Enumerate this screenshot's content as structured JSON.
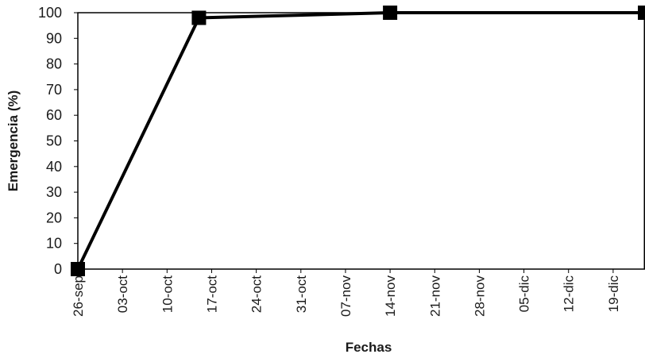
{
  "chart_data": {
    "type": "line",
    "xlabel": "Fechas",
    "ylabel": "Emergencia (%)",
    "ylim": [
      0,
      100
    ],
    "yticks": [
      "0",
      "10",
      "20",
      "30",
      "40",
      "50",
      "60",
      "70",
      "80",
      "90",
      "100"
    ],
    "xticks": [
      "26-sep",
      "03-oct",
      "10-oct",
      "17-oct",
      "24-oct",
      "31-oct",
      "07-nov",
      "14-nov",
      "21-nov",
      "28-nov",
      "05-dic",
      "12-dic",
      "19-dic"
    ],
    "xrange": [
      "26-sep",
      "24-dic"
    ],
    "grid": false,
    "legend": "none",
    "series": [
      {
        "x": [
          "26-sep",
          "15-oct",
          "14-nov",
          "24-dic"
        ],
        "y": [
          0,
          98,
          100,
          100
        ],
        "marker": "square",
        "color": "#000000"
      }
    ]
  }
}
